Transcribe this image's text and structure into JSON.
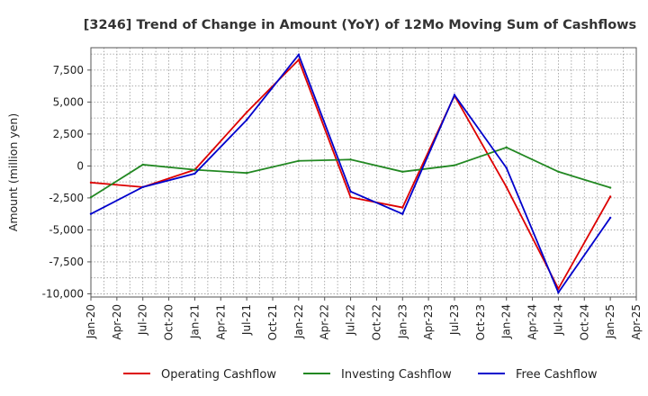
{
  "chart_data": {
    "type": "line",
    "title": "[3246]  Trend of Change in Amount (YoY) of 12Mo Moving Sum of Cashflows",
    "ylabel": "Amount (million yen)",
    "xlabel": "",
    "ylim": [
      -10250,
      9250
    ],
    "yticks": [
      7500,
      5000,
      2500,
      0,
      -2500,
      -5000,
      -7500,
      -10000
    ],
    "ytick_labels": [
      "7,500",
      "5,000",
      "2,500",
      "0",
      "-2,500",
      "-5,000",
      "-7,500",
      "-10,000"
    ],
    "xtick_labels": [
      "Jan-20",
      "Apr-20",
      "Jul-20",
      "Oct-20",
      "Jan-21",
      "Apr-21",
      "Jul-21",
      "Oct-21",
      "Jan-22",
      "Apr-22",
      "Jul-22",
      "Oct-22",
      "Jan-23",
      "Apr-23",
      "Jul-23",
      "Oct-23",
      "Jan-24",
      "Apr-24",
      "Jul-24",
      "Oct-24",
      "Jan-25",
      "Apr-25"
    ],
    "x_index": [
      0,
      2,
      4,
      6,
      8,
      10,
      12,
      14,
      16,
      18,
      20
    ],
    "grid": true,
    "legend_position": "bottom",
    "series": [
      {
        "name": "Operating Cashflow",
        "color": "#dd0000",
        "values": [
          -1300,
          -1650,
          -300,
          4200,
          8300,
          -2450,
          -3250,
          5500,
          -1650,
          -9600,
          -2400
        ]
      },
      {
        "name": "Investing Cashflow",
        "color": "#228822",
        "values": [
          -2450,
          100,
          -300,
          -550,
          400,
          500,
          -450,
          50,
          1450,
          -450,
          -1700
        ]
      },
      {
        "name": "Free Cashflow",
        "color": "#0000cc",
        "values": [
          -3750,
          -1650,
          -600,
          3600,
          8700,
          -2000,
          -3750,
          5550,
          -150,
          -9900,
          -4050
        ]
      }
    ]
  }
}
